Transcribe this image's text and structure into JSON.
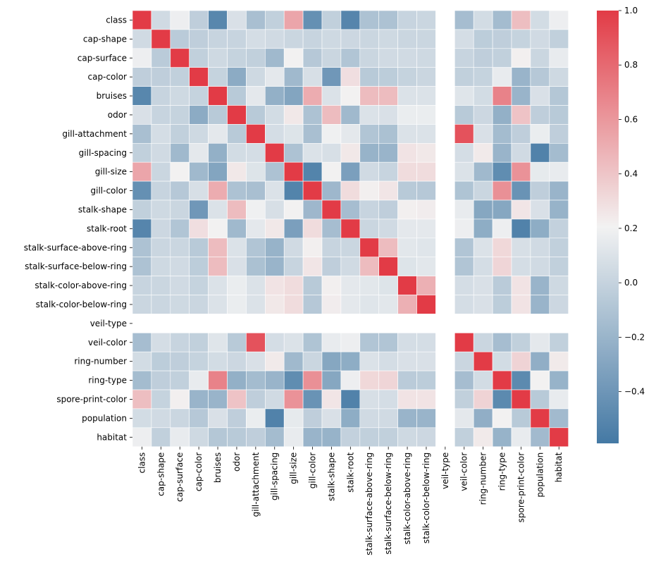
{
  "chart_data": {
    "type": "heatmap",
    "variables": [
      "class",
      "cap-shape",
      "cap-surface",
      "cap-color",
      "bruises",
      "odor",
      "gill-attachment",
      "gill-spacing",
      "gill-size",
      "gill-color",
      "stalk-shape",
      "stalk-root",
      "stalk-surface-above-ring",
      "stalk-surface-below-ring",
      "stalk-color-above-ring",
      "stalk-color-below-ring",
      "veil-type",
      "veil-color",
      "ring-number",
      "ring-type",
      "spore-print-color",
      "population",
      "habitat"
    ],
    "matrix": [
      [
        1.0,
        0.05,
        0.18,
        -0.03,
        -0.5,
        0.09,
        -0.13,
        -0.02,
        0.54,
        -0.44,
        -0.02,
        -0.51,
        -0.11,
        -0.11,
        0.01,
        0.02,
        null,
        -0.14,
        0.06,
        -0.15,
        0.43,
        0.06,
        0.18
      ],
      [
        0.05,
        1.0,
        -0.05,
        -0.03,
        0.01,
        0.01,
        0.07,
        0.05,
        0.02,
        0.01,
        0.04,
        0.03,
        0.02,
        0.04,
        0.02,
        0.02,
        null,
        0.07,
        -0.04,
        -0.03,
        0.0,
        0.05,
        -0.02
      ],
      [
        0.18,
        -0.05,
        1.0,
        -0.02,
        0.04,
        0.0,
        -0.02,
        -0.17,
        0.21,
        -0.07,
        0.02,
        -0.09,
        0.02,
        0.05,
        0.05,
        0.04,
        null,
        0.01,
        -0.03,
        -0.02,
        0.22,
        0.02,
        0.16
      ],
      [
        -0.03,
        -0.03,
        -0.02,
        1.0,
        0.0,
        -0.26,
        0.04,
        0.14,
        -0.17,
        0.08,
        -0.39,
        0.29,
        -0.06,
        -0.04,
        0.0,
        0.02,
        null,
        -0.02,
        -0.0,
        0.16,
        -0.2,
        -0.07,
        0.04
      ],
      [
        -0.5,
        0.01,
        0.04,
        0.0,
        1.0,
        -0.06,
        0.14,
        -0.23,
        -0.3,
        0.51,
        0.1,
        0.21,
        0.44,
        0.44,
        0.1,
        0.1,
        null,
        0.12,
        0.06,
        0.69,
        -0.2,
        0.09,
        -0.08
      ],
      [
        0.09,
        0.01,
        0.0,
        -0.26,
        -0.06,
        1.0,
        -0.06,
        0.06,
        0.25,
        -0.11,
        0.44,
        -0.17,
        0.1,
        0.09,
        0.17,
        0.17,
        null,
        -0.06,
        0.03,
        -0.23,
        0.41,
        -0.03,
        -0.06
      ],
      [
        -0.13,
        0.07,
        -0.02,
        0.04,
        0.14,
        -0.06,
        1.0,
        0.07,
        0.11,
        -0.13,
        0.19,
        0.14,
        -0.09,
        -0.12,
        0.1,
        0.1,
        null,
        0.9,
        0.09,
        -0.15,
        -0.03,
        0.17,
        -0.03
      ],
      [
        -0.02,
        0.05,
        -0.17,
        0.14,
        -0.23,
        0.06,
        0.07,
        1.0,
        -0.11,
        0.1,
        0.08,
        0.25,
        -0.21,
        -0.2,
        0.27,
        0.25,
        null,
        0.07,
        0.24,
        -0.2,
        0.05,
        -0.53,
        -0.15
      ],
      [
        0.54,
        0.02,
        0.21,
        -0.17,
        -0.3,
        0.25,
        0.11,
        -0.11,
        1.0,
        -0.52,
        0.21,
        -0.34,
        0.05,
        0.01,
        0.3,
        0.3,
        null,
        0.1,
        -0.17,
        -0.46,
        0.62,
        0.15,
        0.16
      ],
      [
        -0.44,
        0.01,
        -0.07,
        0.08,
        0.51,
        -0.11,
        -0.13,
        0.1,
        -0.52,
        1.0,
        -0.18,
        0.3,
        0.22,
        0.26,
        -0.06,
        -0.07,
        null,
        -0.1,
        0.02,
        0.63,
        -0.42,
        -0.03,
        -0.2
      ],
      [
        -0.02,
        0.04,
        0.02,
        -0.39,
        0.1,
        0.44,
        0.19,
        0.08,
        0.21,
        -0.18,
        1.0,
        -0.14,
        0.01,
        -0.03,
        0.22,
        0.23,
        null,
        0.16,
        -0.29,
        -0.29,
        0.26,
        0.09,
        -0.21
      ],
      [
        -0.51,
        0.03,
        -0.09,
        0.29,
        0.21,
        -0.17,
        0.14,
        0.25,
        -0.34,
        0.3,
        -0.14,
        1.0,
        0.02,
        0.05,
        0.14,
        0.14,
        null,
        0.18,
        -0.25,
        0.18,
        -0.53,
        -0.25,
        -0.01
      ],
      [
        -0.11,
        0.02,
        0.02,
        -0.06,
        0.44,
        0.1,
        -0.09,
        -0.21,
        0.05,
        0.22,
        0.01,
        0.02,
        1.0,
        0.44,
        0.13,
        0.12,
        null,
        -0.09,
        0.1,
        0.32,
        0.08,
        0.05,
        -0.02
      ],
      [
        -0.11,
        0.04,
        0.05,
        -0.04,
        0.44,
        0.09,
        -0.12,
        -0.2,
        0.01,
        0.26,
        -0.03,
        0.05,
        0.44,
        1.0,
        0.11,
        0.13,
        null,
        -0.09,
        0.07,
        0.33,
        0.07,
        0.05,
        -0.02
      ],
      [
        0.01,
        0.02,
        0.05,
        0.0,
        0.1,
        0.17,
        0.1,
        0.27,
        0.3,
        -0.06,
        0.22,
        0.14,
        0.13,
        0.11,
        1.0,
        0.49,
        null,
        0.07,
        0.09,
        -0.05,
        0.27,
        -0.2,
        0.04
      ],
      [
        0.02,
        0.02,
        0.04,
        0.02,
        0.1,
        0.17,
        0.1,
        0.25,
        0.3,
        -0.07,
        0.23,
        0.14,
        0.12,
        0.13,
        0.49,
        1.0,
        null,
        0.07,
        0.09,
        -0.04,
        0.27,
        -0.2,
        0.03
      ],
      [
        null,
        null,
        null,
        null,
        null,
        null,
        null,
        null,
        null,
        null,
        null,
        null,
        null,
        null,
        null,
        null,
        null,
        null,
        null,
        null,
        null,
        null,
        null
      ],
      [
        -0.14,
        0.07,
        0.01,
        -0.02,
        0.12,
        -0.06,
        0.9,
        0.07,
        0.1,
        -0.1,
        0.16,
        0.18,
        -0.09,
        -0.09,
        0.07,
        0.07,
        null,
        1.0,
        0.02,
        -0.14,
        -0.02,
        0.14,
        -0.02
      ],
      [
        0.06,
        -0.04,
        -0.03,
        -0.0,
        0.06,
        0.03,
        0.09,
        0.24,
        -0.17,
        0.02,
        -0.29,
        -0.25,
        0.1,
        0.07,
        0.09,
        0.09,
        null,
        0.02,
        1.0,
        0.06,
        0.34,
        -0.24,
        0.24
      ],
      [
        -0.15,
        -0.03,
        -0.02,
        0.16,
        0.69,
        -0.23,
        -0.15,
        -0.2,
        -0.46,
        0.63,
        -0.29,
        0.18,
        0.32,
        0.33,
        -0.05,
        -0.04,
        null,
        -0.14,
        0.06,
        1.0,
        -0.48,
        0.21,
        -0.21
      ],
      [
        0.43,
        0.0,
        0.22,
        -0.2,
        -0.2,
        0.41,
        -0.03,
        0.05,
        0.62,
        -0.42,
        0.26,
        -0.53,
        0.08,
        0.07,
        0.27,
        0.27,
        null,
        -0.02,
        0.34,
        -0.48,
        1.0,
        -0.06,
        0.16
      ],
      [
        0.06,
        0.05,
        0.02,
        -0.07,
        0.09,
        -0.03,
        0.17,
        -0.53,
        0.15,
        -0.03,
        0.09,
        -0.25,
        0.05,
        0.05,
        -0.2,
        -0.2,
        null,
        0.14,
        -0.24,
        0.21,
        -0.06,
        1.0,
        -0.16
      ],
      [
        0.18,
        -0.02,
        0.16,
        0.04,
        -0.08,
        -0.06,
        -0.03,
        -0.15,
        0.16,
        -0.2,
        -0.21,
        -0.01,
        -0.02,
        -0.02,
        0.04,
        0.03,
        null,
        -0.02,
        0.24,
        -0.21,
        0.16,
        -0.16,
        1.0
      ]
    ],
    "vmin": -0.59,
    "vmax": 1.0,
    "colormap": {
      "negative": "#4479a4",
      "center": "#f2f2f2",
      "positive": "#e23b46",
      "center_value": 0.205
    },
    "colorbar_ticks": [
      "1.0",
      "0.8",
      "0.6",
      "0.4",
      "0.2",
      "0.0",
      "−0.2",
      "−0.4"
    ],
    "colorbar_tick_values": [
      1.0,
      0.8,
      0.6,
      0.4,
      0.2,
      0.0,
      -0.2,
      -0.4
    ],
    "grid_line_color": "#ffffff",
    "title": "",
    "xlabel": "",
    "ylabel": ""
  }
}
